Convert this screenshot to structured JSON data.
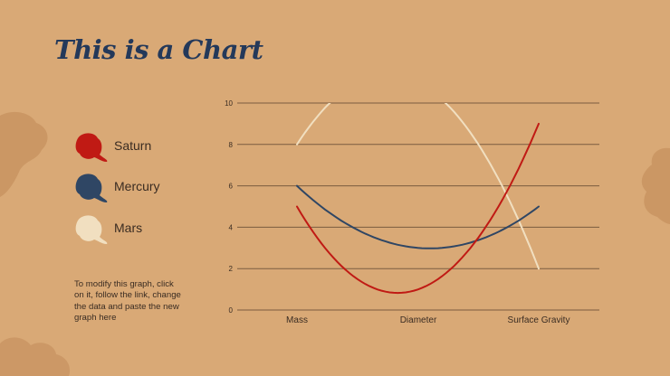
{
  "title": "This is a Chart",
  "note": "To modify this graph, click on it, follow the link, change the data and paste the new graph here",
  "colors": {
    "background": "#d9a976",
    "title": "#24395a",
    "saturn": "#c01a14",
    "mercury": "#2f4664",
    "mars": "#f1dfc0",
    "grid": "#7a5c40"
  },
  "legend": [
    {
      "label": "Saturn",
      "color": "#c01a14"
    },
    {
      "label": "Mercury",
      "color": "#2f4664"
    },
    {
      "label": "Mars",
      "color": "#f1dfc0"
    }
  ],
  "chart_data": {
    "type": "line",
    "categories": [
      "Mass",
      "Diameter",
      "Surface Gravity"
    ],
    "series": [
      {
        "name": "Saturn",
        "values": [
          5,
          1,
          9
        ],
        "color": "#c01a14"
      },
      {
        "name": "Mercury",
        "values": [
          6,
          3,
          5
        ],
        "color": "#2f4664"
      },
      {
        "name": "Mars",
        "values": [
          8,
          11,
          2
        ],
        "color": "#f1dfc0"
      }
    ],
    "ylim": [
      0,
      10
    ],
    "yticks": [
      "0",
      "2",
      "4",
      "6",
      "8",
      "10"
    ],
    "grid": true,
    "smooth": true,
    "legend_position": "left"
  }
}
